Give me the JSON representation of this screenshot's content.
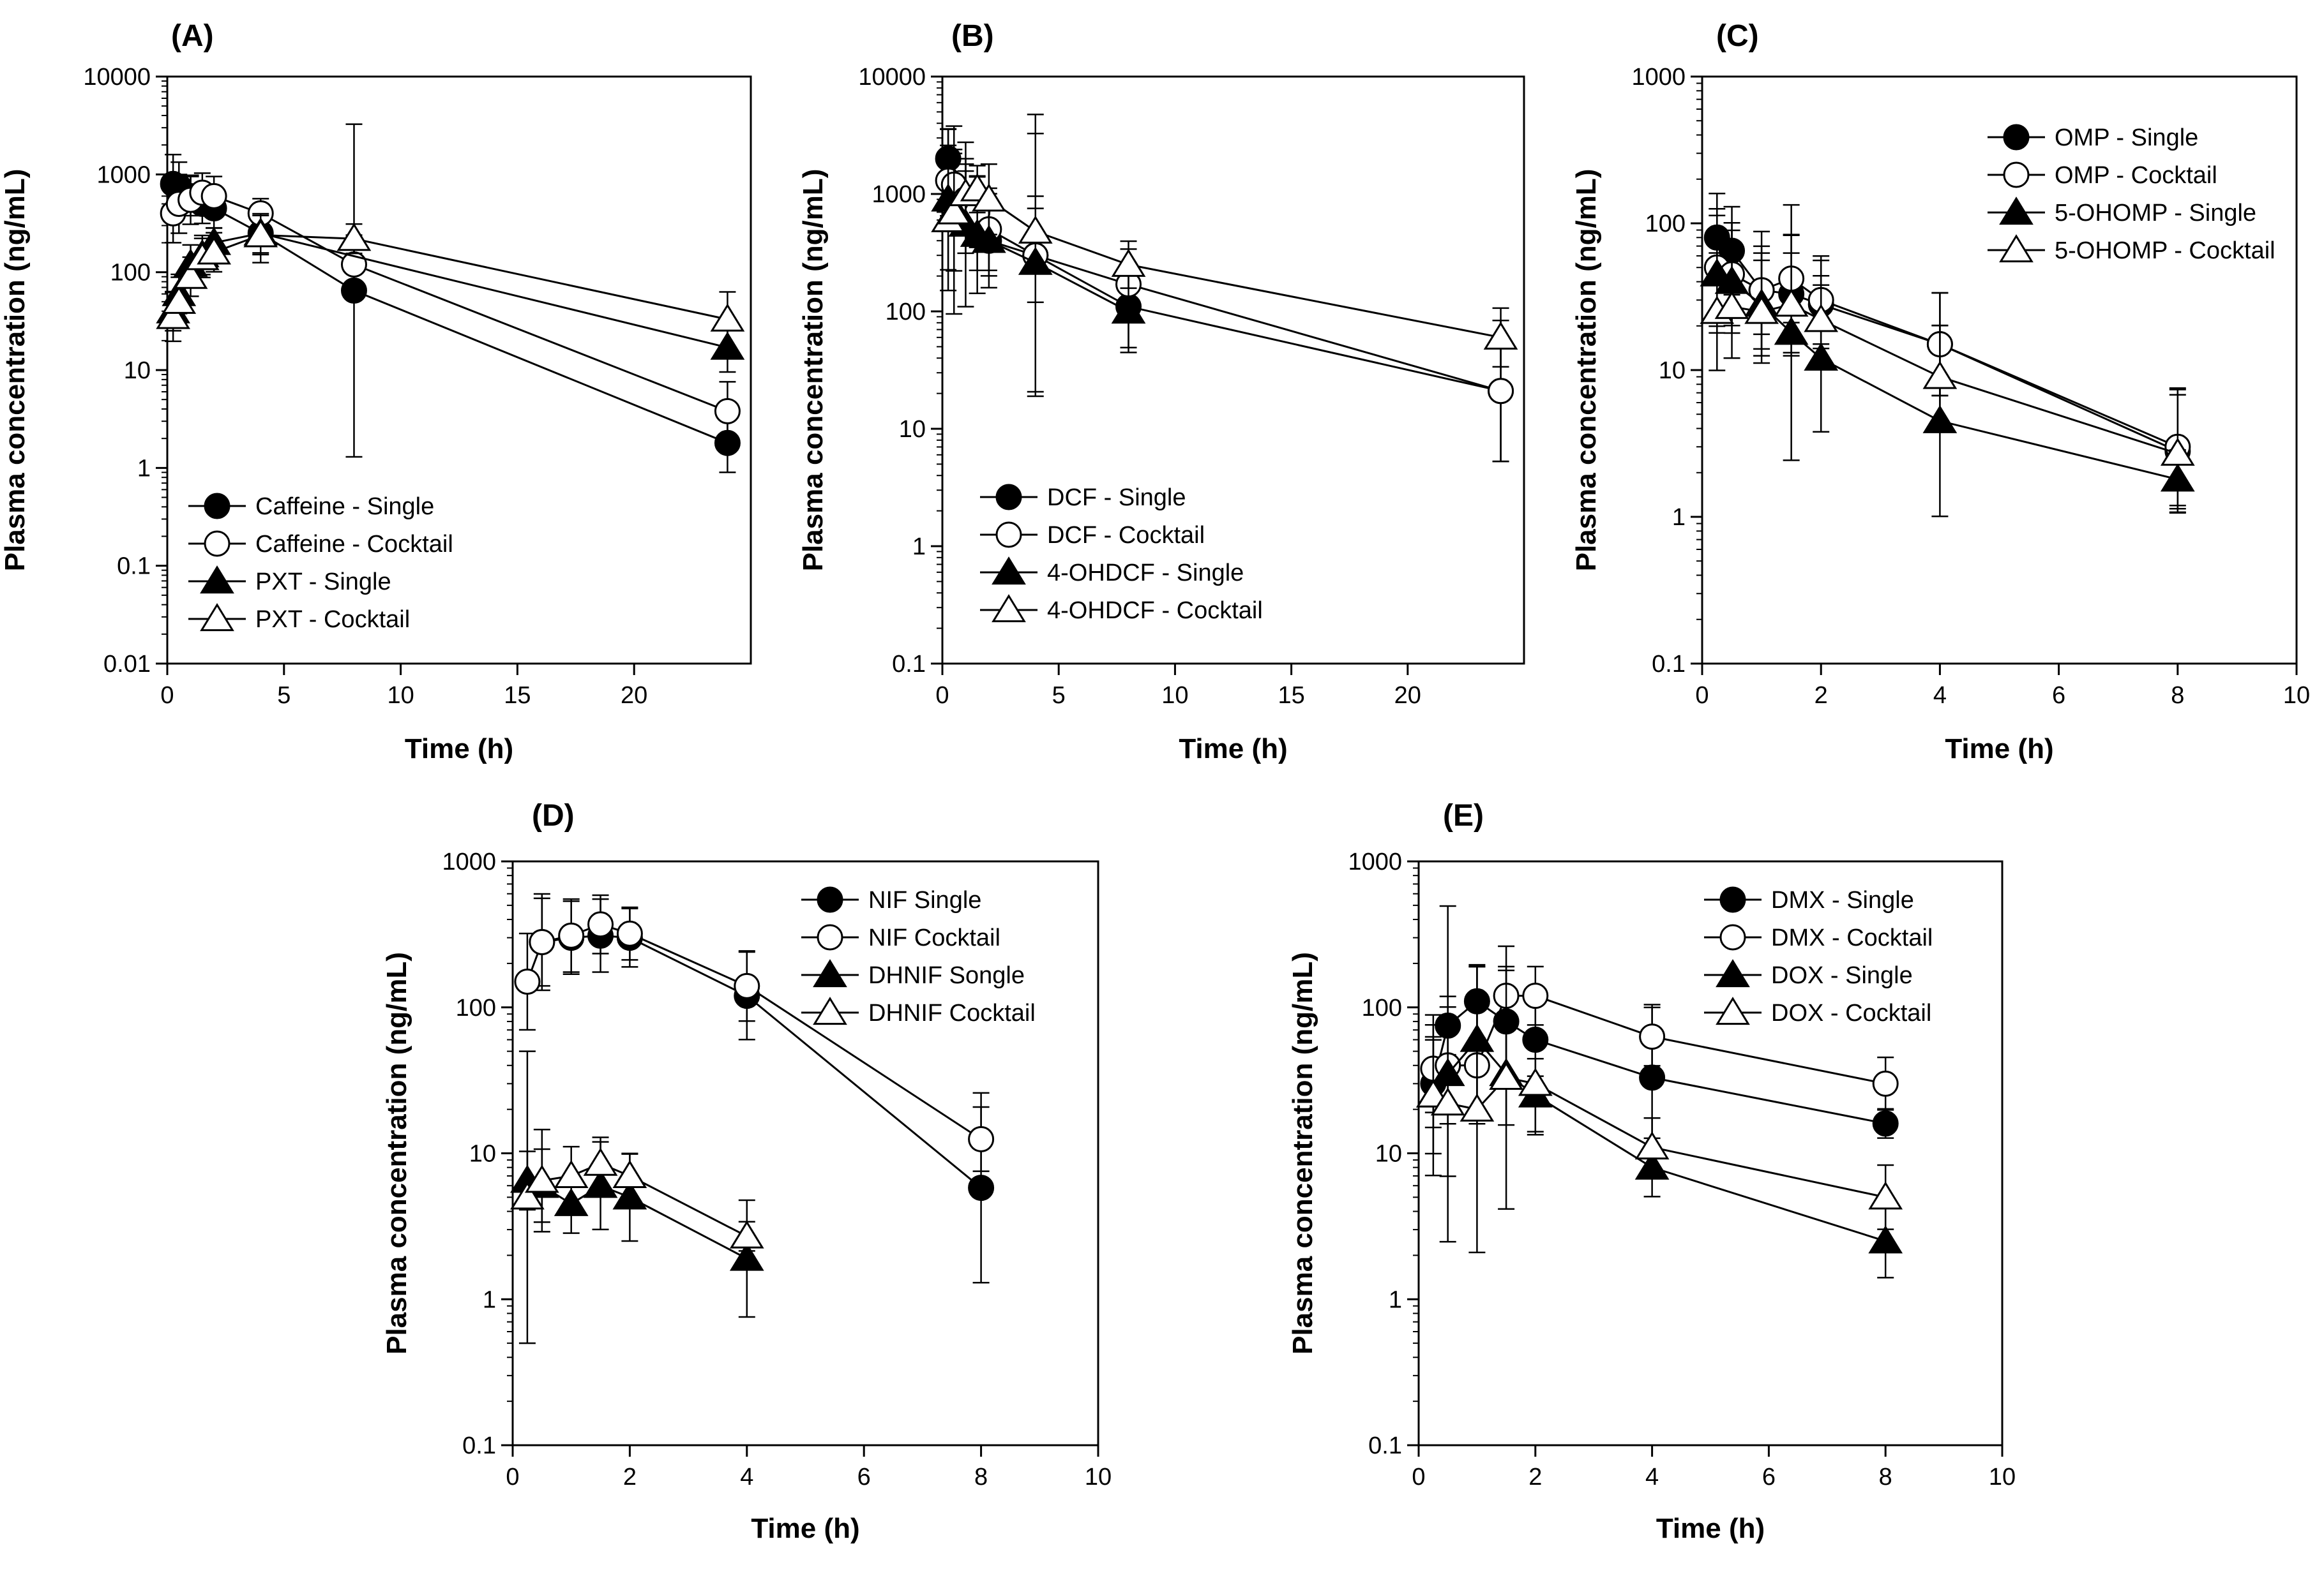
{
  "figure": {
    "background": "#ffffff",
    "ink": "#000000"
  },
  "chart_data": [
    {
      "label": "(A)",
      "type": "line",
      "yscale": "log",
      "xlabel": "Time (h)",
      "ylabel": "Plasma concentration (ng/mL)",
      "xlim": [
        0,
        25
      ],
      "ylim": [
        0.01,
        10000
      ],
      "xticks": [
        0,
        5,
        10,
        15,
        20
      ],
      "yticks": [
        0.01,
        0.1,
        1,
        10,
        100,
        1000,
        10000
      ],
      "ytick_labels": [
        "0.01",
        "0.1",
        "1",
        "10",
        "100",
        "1000",
        "10000"
      ],
      "legend_position": "bottom-left",
      "series": [
        {
          "name": "Caffeine - Single",
          "marker": "circle",
          "fill": "filled",
          "x": [
            0.25,
            0.5,
            1,
            1.5,
            2,
            4,
            8,
            24
          ],
          "y": [
            800,
            750,
            600,
            500,
            450,
            250,
            65,
            1.8
          ],
          "err": [
            0.3,
            0.25,
            0.2,
            0.2,
            0.2,
            0.3,
            1.7,
            0.3
          ]
        },
        {
          "name": "Caffeine - Cocktail",
          "marker": "circle",
          "fill": "open",
          "x": [
            0.25,
            0.5,
            1,
            1.5,
            2,
            4,
            8,
            24
          ],
          "y": [
            400,
            500,
            550,
            650,
            600,
            400,
            120,
            3.8
          ],
          "err": [
            0.3,
            0.3,
            0.25,
            0.2,
            0.2,
            0.15,
            0.3,
            0.3
          ]
        },
        {
          "name": "PXT - Single",
          "marker": "triangle",
          "fill": "filled",
          "x": [
            0.25,
            0.5,
            1,
            1.5,
            2,
            4,
            24
          ],
          "y": [
            40,
            60,
            120,
            150,
            200,
            250,
            17
          ],
          "err": [
            0.2,
            0.2,
            0.2,
            0.2,
            0.15,
            0.2,
            0.25
          ]
        },
        {
          "name": "PXT - Cocktail",
          "marker": "triangle",
          "fill": "open",
          "x": [
            0.25,
            0.5,
            1,
            1.5,
            2,
            4,
            8,
            24
          ],
          "y": [
            35,
            50,
            90,
            140,
            160,
            240,
            220,
            33
          ],
          "err": [
            0.25,
            0.25,
            0.2,
            0.2,
            0.2,
            0.2,
            0.15,
            0.28
          ]
        }
      ]
    },
    {
      "label": "(B)",
      "type": "line",
      "yscale": "log",
      "xlabel": "Time (h)",
      "ylabel": "Plasma concentration (ng/mL)",
      "xlim": [
        0,
        25
      ],
      "ylim": [
        0.1,
        10000
      ],
      "xticks": [
        0,
        5,
        10,
        15,
        20
      ],
      "yticks": [
        0.1,
        1,
        10,
        100,
        1000,
        10000
      ],
      "ytick_labels": [
        "0.1",
        "1",
        "10",
        "100",
        "1000",
        "10000"
      ],
      "legend_position": "bottom-left",
      "series": [
        {
          "name": "DCF - Single",
          "marker": "circle",
          "fill": "filled",
          "x": [
            0.25,
            0.5,
            1,
            1.5,
            2,
            4,
            8,
            24
          ],
          "y": [
            2000,
            1200,
            700,
            500,
            400,
            300,
            110,
            21
          ],
          "err": [
            0.25,
            0.3,
            0.35,
            0.35,
            0.3,
            1.2,
            0.35,
            0.6
          ]
        },
        {
          "name": "DCF - Cocktail",
          "marker": "circle",
          "fill": "open",
          "x": [
            0.25,
            0.5,
            1,
            1.5,
            2,
            4,
            8,
            24
          ],
          "y": [
            1300,
            1200,
            900,
            700,
            500,
            300,
            170,
            21
          ],
          "err": [
            0.3,
            0.3,
            0.3,
            0.3,
            0.35,
            0.4,
            0.3,
            0.6
          ]
        },
        {
          "name": "4-OHDCF - Single",
          "marker": "triangle",
          "fill": "filled",
          "x": [
            0.25,
            0.5,
            1,
            1.5,
            2,
            4,
            8
          ],
          "y": [
            900,
            600,
            550,
            450,
            400,
            260,
            100
          ],
          "err": [
            0.6,
            0.8,
            0.7,
            0.5,
            0.4,
            1.1,
            0.35
          ]
        },
        {
          "name": "4-OHDCF - Cocktail",
          "marker": "triangle",
          "fill": "open",
          "x": [
            0.25,
            0.5,
            1,
            1.5,
            2,
            4,
            8,
            24
          ],
          "y": [
            600,
            700,
            1000,
            1100,
            900,
            480,
            250,
            60
          ],
          "err": [
            0.6,
            0.5,
            0.3,
            0.2,
            0.3,
            0.3,
            0.2,
            0.25
          ]
        }
      ]
    },
    {
      "label": "(C)",
      "type": "line",
      "yscale": "log",
      "xlabel": "Time (h)",
      "ylabel": "Plasma concentration (ng/mL)",
      "xlim": [
        0,
        10
      ],
      "ylim": [
        0.1,
        1000
      ],
      "xticks": [
        0,
        2,
        4,
        6,
        8,
        10
      ],
      "yticks": [
        0.1,
        1,
        10,
        100,
        1000
      ],
      "ytick_labels": [
        "0.1",
        "1",
        "10",
        "100",
        "1000"
      ],
      "legend_position": "top-right",
      "series": [
        {
          "name": "OMP - Single",
          "marker": "circle",
          "fill": "filled",
          "x": [
            0.25,
            0.5,
            1,
            1.5,
            2,
            4,
            8
          ],
          "y": [
            80,
            65,
            35,
            33,
            28,
            15,
            2.8
          ],
          "err": [
            0.3,
            0.3,
            0.4,
            0.4,
            0.3,
            0.35,
            0.42
          ]
        },
        {
          "name": "OMP - Cocktail",
          "marker": "circle",
          "fill": "open",
          "x": [
            0.25,
            0.5,
            1,
            1.5,
            2,
            4,
            8
          ],
          "y": [
            50,
            45,
            35,
            42,
            30,
            15,
            3
          ],
          "err": [
            0.4,
            0.35,
            0.3,
            0.3,
            0.3,
            0.35,
            0.4
          ]
        },
        {
          "name": "5-OHOMP - Single",
          "marker": "triangle",
          "fill": "filled",
          "x": [
            0.25,
            0.5,
            1,
            1.5,
            2,
            4,
            8
          ],
          "y": [
            45,
            40,
            28,
            18,
            12,
            4.5,
            1.8
          ],
          "err": [
            0.4,
            0.35,
            0.35,
            0.87,
            0.5,
            0.65,
            0.2
          ]
        },
        {
          "name": "5-OHOMP - Cocktail",
          "marker": "triangle",
          "fill": "open",
          "x": [
            0.25,
            0.5,
            1,
            1.5,
            2,
            4,
            8
          ],
          "y": [
            25,
            27,
            25,
            28,
            22,
            9,
            2.7
          ],
          "err": [
            0.4,
            0.35,
            0.35,
            0.35,
            0.3,
            0.35,
            0.4
          ]
        }
      ]
    },
    {
      "label": "(D)",
      "type": "line",
      "yscale": "log",
      "xlabel": "Time (h)",
      "ylabel": "Plasma concentration (ng/mL)",
      "xlim": [
        0,
        10
      ],
      "ylim": [
        0.1,
        1000
      ],
      "xticks": [
        0,
        2,
        4,
        6,
        8,
        10
      ],
      "yticks": [
        0.1,
        1,
        10,
        100,
        1000
      ],
      "ytick_labels": [
        "0.1",
        "1",
        "10",
        "100",
        "1000"
      ],
      "legend_position": "top-right",
      "series": [
        {
          "name": "NIF Single",
          "marker": "circle",
          "fill": "filled",
          "x": [
            0.5,
            1,
            1.5,
            2,
            4,
            8
          ],
          "y": [
            280,
            300,
            310,
            300,
            120,
            5.8
          ],
          "err": [
            0.3,
            0.25,
            0.25,
            0.2,
            0.3,
            0.65
          ]
        },
        {
          "name": "NIF Cocktail",
          "marker": "circle",
          "fill": "open",
          "x": [
            0.25,
            0.5,
            1,
            1.5,
            2,
            4,
            8
          ],
          "y": [
            150,
            280,
            310,
            370,
            320,
            140,
            12.5
          ],
          "err": [
            0.33,
            0.33,
            0.25,
            0.2,
            0.18,
            0.24,
            0.22
          ]
        },
        {
          "name": "DHNIF Songle",
          "marker": "triangle",
          "fill": "filled",
          "x": [
            0.25,
            0.5,
            1,
            1.5,
            2,
            4
          ],
          "y": [
            6.5,
            6,
            4.5,
            6,
            5,
            1.9
          ],
          "err": [
            0.2,
            0.25,
            0.2,
            0.3,
            0.3,
            0.4
          ]
        },
        {
          "name": "DHNIF Cocktail",
          "marker": "triangle",
          "fill": "open",
          "x": [
            0.25,
            0.5,
            1,
            1.5,
            2,
            4
          ],
          "y": [
            5,
            6.5,
            7,
            8.5,
            7,
            2.7
          ],
          "err": [
            1,
            0.35,
            0.2,
            0.18,
            0.15,
            0.1
          ]
        }
      ]
    },
    {
      "label": "(E)",
      "type": "line",
      "yscale": "log",
      "xlabel": "Time (h)",
      "ylabel": "Plasma concentration (ng/mL)",
      "xlim": [
        0,
        10
      ],
      "ylim": [
        0.1,
        1000
      ],
      "xticks": [
        0,
        2,
        4,
        6,
        8,
        10
      ],
      "yticks": [
        0.1,
        1,
        10,
        100,
        1000
      ],
      "ytick_labels": [
        "0.1",
        "1",
        "10",
        "100",
        "1000"
      ],
      "legend_position": "top-right",
      "series": [
        {
          "name": "DMX - Single",
          "marker": "circle",
          "fill": "filled",
          "x": [
            0.25,
            0.5,
            1,
            1.5,
            2,
            4,
            8
          ],
          "y": [
            30,
            75,
            110,
            80,
            60,
            33,
            16
          ],
          "err": [
            0.3,
            0.2,
            0.25,
            0.35,
            0.25,
            0.5,
            0.1
          ]
        },
        {
          "name": "DMX - Cocktail",
          "marker": "circle",
          "fill": "open",
          "x": [
            0.25,
            0.5,
            1,
            1.5,
            2,
            4,
            8
          ],
          "y": [
            38,
            40,
            40,
            120,
            120,
            63,
            30
          ],
          "err": [
            0.3,
            0.4,
            0.4,
            0.2,
            0.2,
            0.2,
            0.18
          ]
        },
        {
          "name": "DOX - Single",
          "marker": "triangle",
          "fill": "filled",
          "x": [
            0.25,
            0.5,
            1,
            1.5,
            2,
            4,
            8
          ],
          "y": [
            25,
            35,
            60,
            35,
            25,
            8,
            2.5
          ],
          "err": [
            0.4,
            1.15,
            0.5,
            0.35,
            0.25,
            0.2,
            0.25
          ]
        },
        {
          "name": "DOX - Cocktail",
          "marker": "triangle",
          "fill": "open",
          "x": [
            0.25,
            0.5,
            1,
            1.5,
            2,
            4,
            8
          ],
          "y": [
            25,
            22,
            20,
            33,
            30,
            11,
            5
          ],
          "err": [
            0.55,
            0.5,
            0.98,
            0.9,
            0.35,
            0.2,
            0.22
          ]
        }
      ]
    }
  ]
}
